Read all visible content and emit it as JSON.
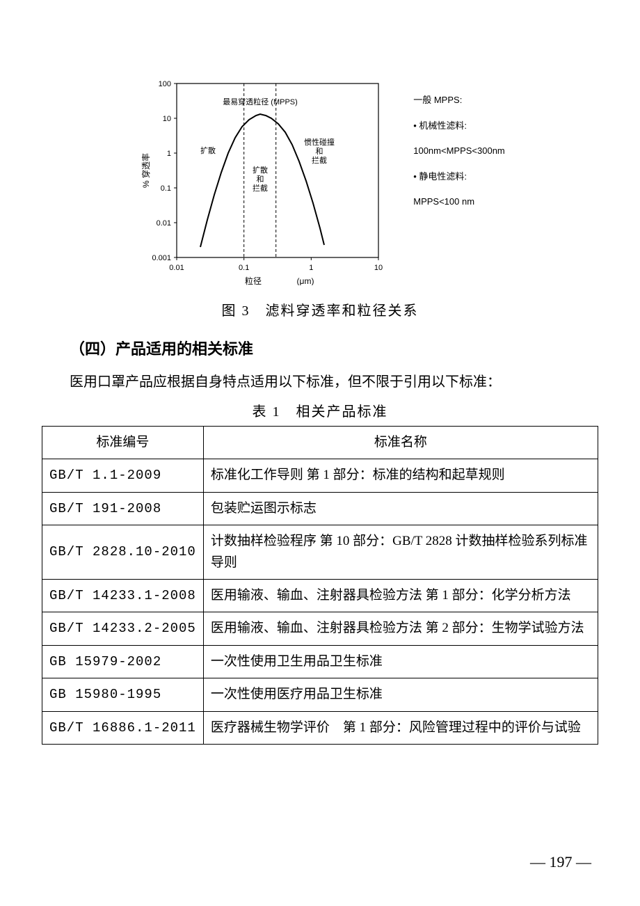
{
  "chart": {
    "type": "line",
    "y_label": "% 穿透率",
    "x_label": "粒径",
    "x_unit": "(μm)",
    "x_ticks": [
      "0.01",
      "0.1",
      "1",
      "10"
    ],
    "y_ticks": [
      "0.001",
      "0.01",
      "0.1",
      "1",
      "10",
      "100"
    ],
    "x_tick_positions": [
      0,
      96.67,
      193.33,
      290
    ],
    "y_tick_positions": [
      250,
      200,
      150,
      100,
      50,
      0
    ],
    "annotations": {
      "mpps_label": "最易穿透粒径 (MPPS)",
      "diffusion": "扩散",
      "diffusion_intercept": "扩散\n和\n拦截",
      "inertia": "惯性碰撞\n和\n拦截"
    },
    "vlines": [
      0.1,
      0.3
    ],
    "vline_positions": [
      96.67,
      142.7
    ],
    "curve_points": [
      [
        34,
        235
      ],
      [
        44,
        196
      ],
      [
        54,
        160
      ],
      [
        64,
        128
      ],
      [
        74,
        100
      ],
      [
        84,
        78
      ],
      [
        94,
        62
      ],
      [
        104,
        52
      ],
      [
        114,
        46
      ],
      [
        120,
        44
      ],
      [
        128,
        46
      ],
      [
        136,
        50
      ],
      [
        146,
        58
      ],
      [
        156,
        70
      ],
      [
        166,
        88
      ],
      [
        176,
        112
      ],
      [
        186,
        140
      ],
      [
        196,
        172
      ],
      [
        206,
        208
      ],
      [
        212,
        232
      ]
    ],
    "line_color": "#000000",
    "background_color": "#ffffff",
    "axis_color": "#000000",
    "dash_color": "#000000",
    "plot_xlim": [
      0.01,
      10
    ],
    "plot_ylim": [
      0.001,
      100
    ],
    "line_width": 2,
    "tick_fontsize": 11,
    "label_fontsize": 12
  },
  "side_text": {
    "heading": "一般 MPPS:",
    "item1_label": "• 机械性滤料:",
    "item1_range": "100nm<MPPS<300nm",
    "item2_label": "• 静电性滤料:",
    "item2_range": "MPPS<100 nm"
  },
  "figure_caption": "图 3　滤料穿透率和粒径关系",
  "section_heading": "（四）产品适用的相关标准",
  "paragraph": "医用口罩产品应根据自身特点适用以下标准，但不限于引用以下标准：",
  "table_caption": "表 1　相关产品标准",
  "table": {
    "columns": [
      "标准编号",
      "标准名称"
    ],
    "rows": [
      [
        "GB/T 1.1-2009",
        "标准化工作导则 第 1 部分：标准的结构和起草规则"
      ],
      [
        "GB/T 191-2008",
        "包装贮运图示标志"
      ],
      [
        "GB/T 2828.10-2010",
        "计数抽样检验程序 第 10 部分：GB/T 2828 计数抽样检验系列标准导则"
      ],
      [
        "GB/T 14233.1-2008",
        "医用输液、输血、注射器具检验方法 第 1 部分：化学分析方法"
      ],
      [
        "GB/T 14233.2-2005",
        "医用输液、输血、注射器具检验方法 第 2 部分：生物学试验方法"
      ],
      [
        "GB 15979-2002",
        "一次性使用卫生用品卫生标准"
      ],
      [
        "GB 15980-1995",
        "一次性使用医疗用品卫生标准"
      ],
      [
        "GB/T 16886.1-2011",
        "医疗器械生物学评价　第 1 部分：风险管理过程中的评价与试验"
      ]
    ]
  },
  "page_number": "— 197 —"
}
